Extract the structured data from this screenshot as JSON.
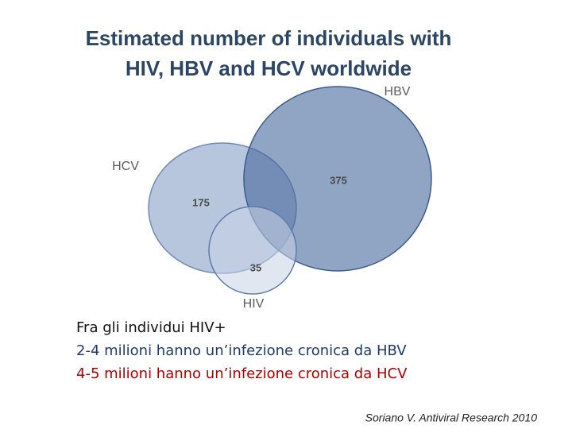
{
  "title_lines": [
    "Estimated number of individuals with",
    "HIV, HBV and HCV worldwide"
  ],
  "sets": [
    {
      "label": "HBV",
      "value": "375"
    },
    {
      "label": "HCV",
      "value": "175"
    },
    {
      "label": "HIV",
      "value": "35"
    }
  ],
  "notes": [
    "Fra gli individui HIV+",
    "2-4 milioni hanno un’infezione cronica da HBV",
    "4-5 milioni hanno un’infezione cronica da HCV"
  ],
  "citation": "Soriano V. Antiviral Research 2010"
}
